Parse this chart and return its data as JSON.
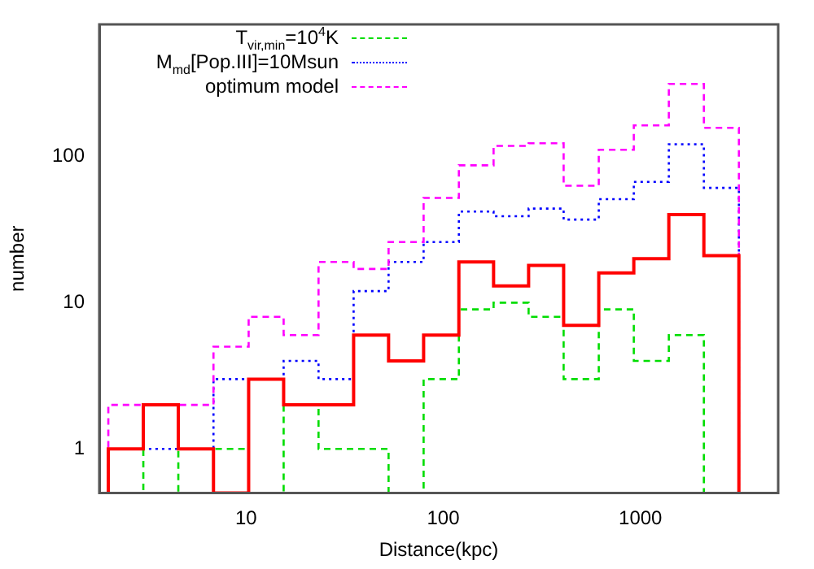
{
  "chart_data": {
    "type": "histogram",
    "xlabel": "Distance(kpc)",
    "ylabel": "number",
    "log": "xy",
    "grid": false,
    "legend": "top left",
    "bins": [
      2,
      3.01,
      4.53,
      6.83,
      10.3,
      15.5,
      23.3,
      35.1,
      52.8,
      79.5,
      120,
      180,
      271,
      408,
      615,
      926,
      1394,
      2099,
      3160
    ],
    "xlim": [
      1.8,
      5000
    ],
    "xticks": [
      10,
      100,
      1000
    ],
    "ylim": [
      0.5,
      800
    ],
    "yticks": [
      1,
      10,
      100
    ],
    "series": [
      {
        "name": "T$_{vir,min}$=10$^{4}$K",
        "color": "#00dd00",
        "line_style": "dashed",
        "values": [
          1,
          null,
          1,
          1,
          null,
          2,
          1,
          1,
          null,
          3,
          9,
          10,
          8,
          3,
          9,
          4,
          6,
          null
        ]
      },
      {
        "name": "M$_{md}$[Pop.III]=10Msun",
        "color": "#0000ff",
        "line_style": "dotted",
        "values": [
          1,
          1,
          1,
          3,
          3,
          4,
          3,
          12,
          19,
          26,
          42,
          39,
          44,
          37,
          51,
          67,
          121,
          61
        ]
      },
      {
        "name": "optimum model",
        "color": "#ff00ff",
        "line_style": "dashed",
        "values": [
          2,
          2,
          2,
          5,
          8,
          6,
          19,
          17,
          26,
          52,
          87,
          118,
          123,
          63,
          111,
          163,
          313,
          157
        ]
      },
      {
        "color": "#ff0000",
        "line_style": "solid",
        "values": [
          1,
          2,
          1,
          null,
          3,
          2,
          2,
          6,
          4,
          6,
          19,
          13,
          18,
          7,
          16,
          20,
          40,
          21
        ]
      }
    ]
  }
}
